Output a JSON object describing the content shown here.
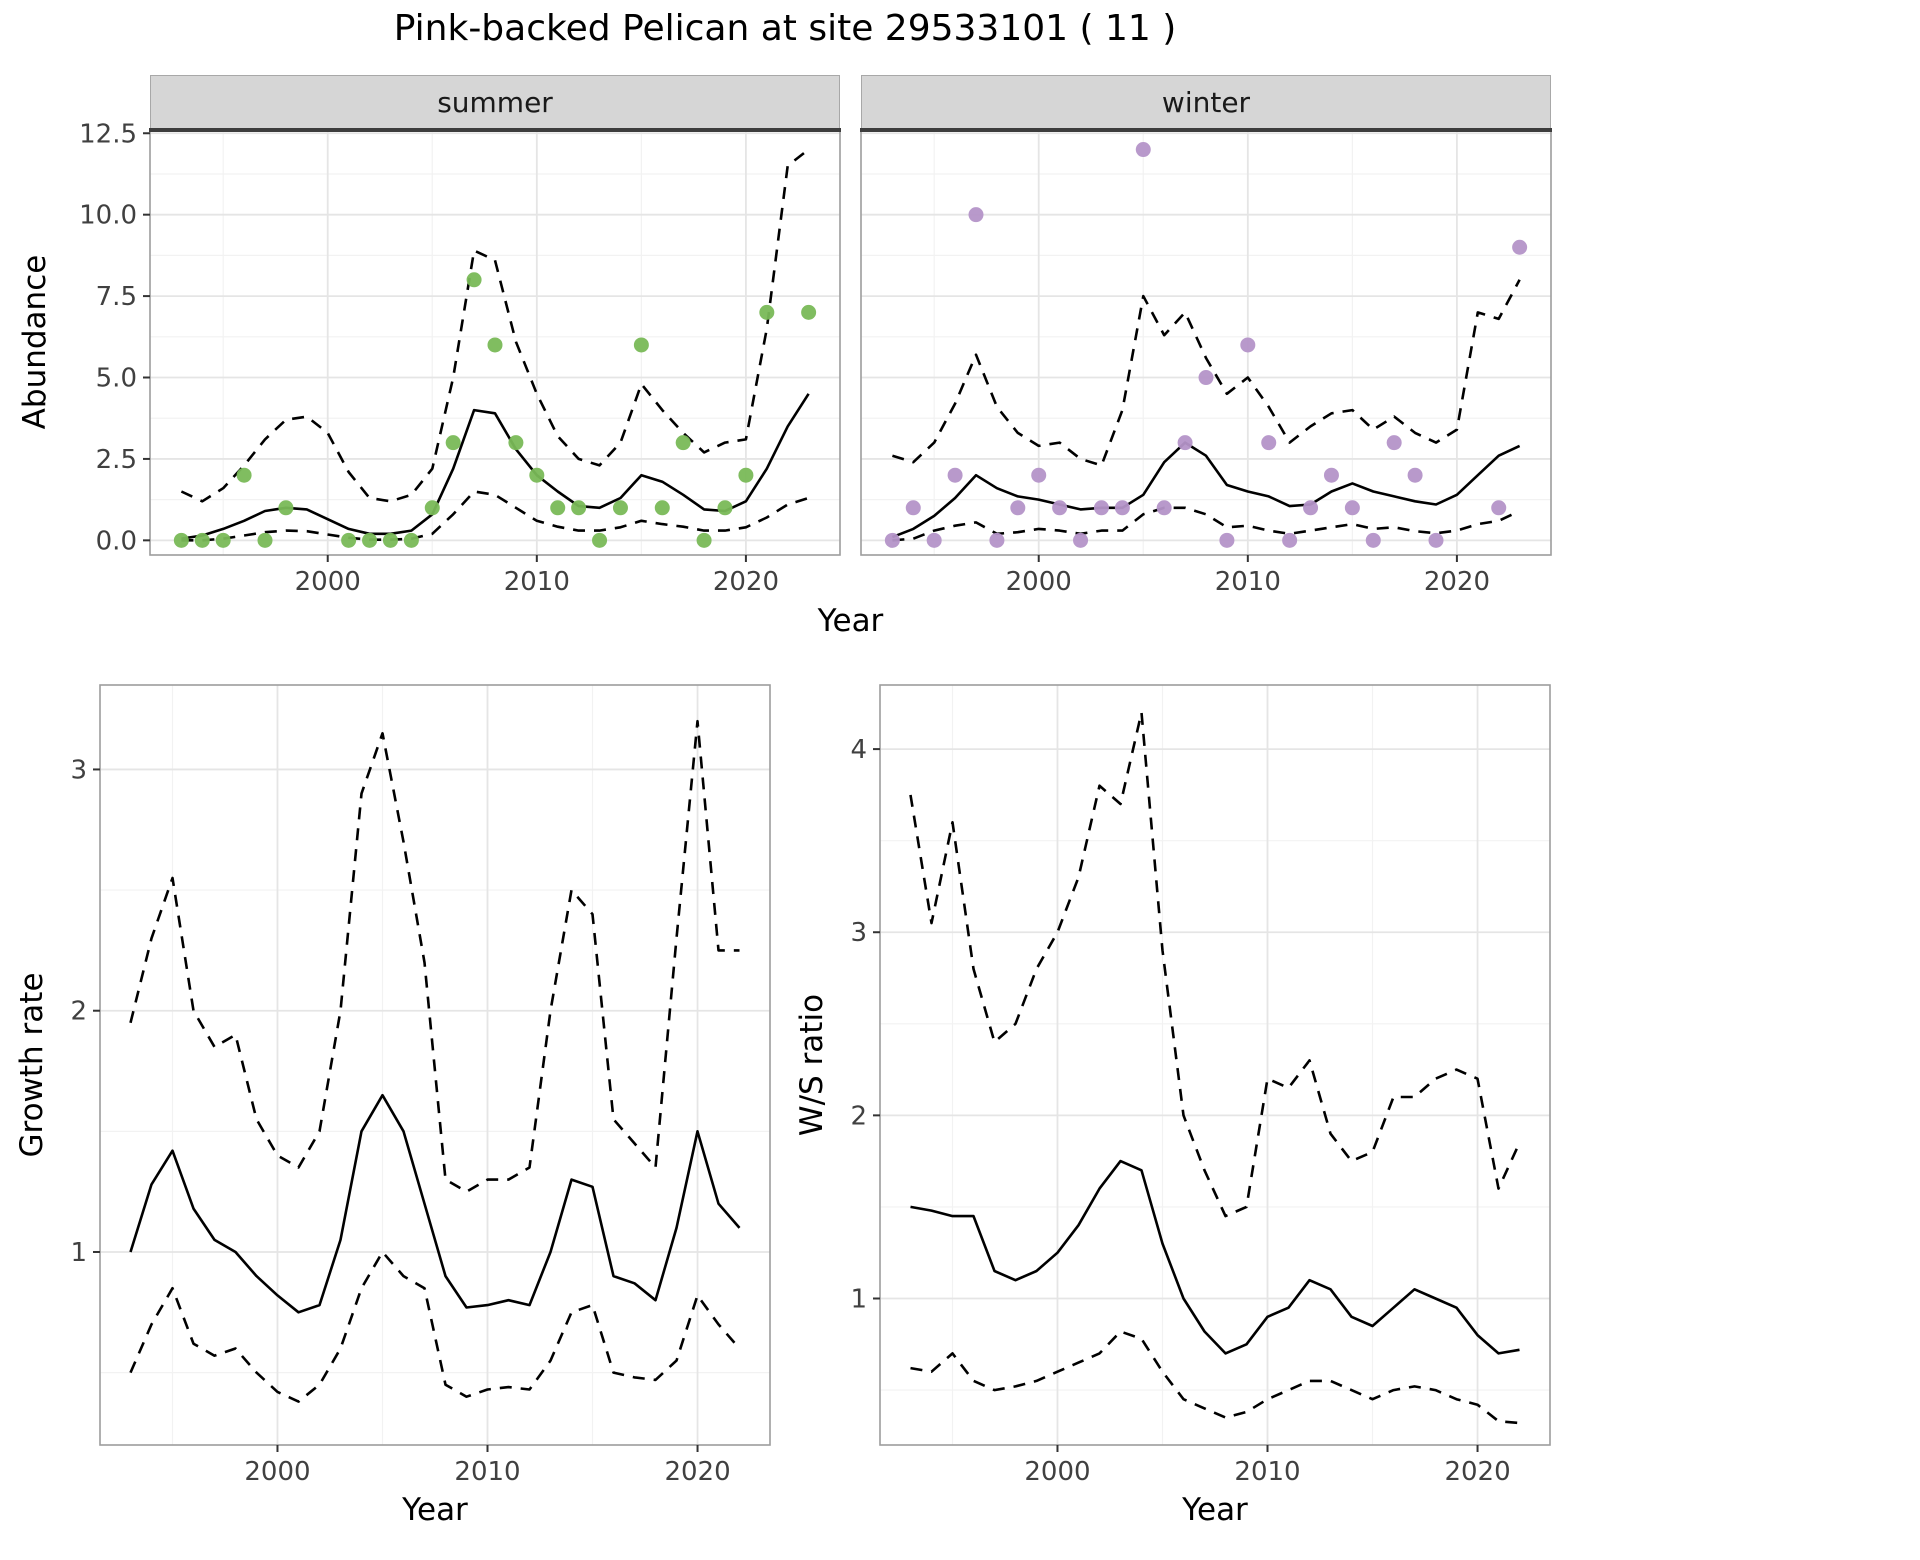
{
  "title": "Pink-backed Pelican at site 29533101 ( 11 )",
  "colors": {
    "summer_points": "#79b957",
    "winter_points": "#b493c8",
    "line": "#000000",
    "strip_background": "#d6d6d6",
    "panel_border": "#9d9d9d",
    "top_bar": "#3d3d3d",
    "grid_major": "#e5e5e5",
    "grid_minor": "#f2f2f2"
  },
  "chart_data": {
    "abundance": {
      "type": "line",
      "title": "Abundance by season with model fit and confidence band",
      "xlabel": "Year",
      "ylabel": "Abundance",
      "xlim": [
        1991.5,
        2024.5
      ],
      "ylim": [
        -0.45,
        12.6
      ],
      "xticks": [
        2000,
        2010,
        2020
      ],
      "xtick_labels": [
        "2000",
        "2010",
        "2020"
      ],
      "yticks": [
        0,
        2.5,
        5,
        7.5,
        10,
        12.5
      ],
      "ytick_labels": [
        "0.0",
        "2.5",
        "5.0",
        "7.5",
        "10.0",
        "12.5"
      ],
      "grid": true,
      "legend": "none",
      "series_style": {
        "fit": "solid",
        "upper": "dashed",
        "lower": "dashed"
      },
      "facets": [
        {
          "label": "summer",
          "point_color": "#79b957",
          "points": {
            "x": [
              1993,
              1994,
              1995,
              1996,
              1997,
              1998,
              2001,
              2002,
              2003,
              2004,
              2005,
              2006,
              2007,
              2008,
              2009,
              2010,
              2011,
              2012,
              2013,
              2014,
              2015,
              2016,
              2017,
              2018,
              2019,
              2020,
              2021,
              2023
            ],
            "y": [
              0,
              0,
              0,
              2,
              0,
              1,
              0,
              0,
              0,
              0,
              1,
              3,
              8,
              6,
              3,
              2,
              1,
              1,
              0,
              1,
              6,
              1,
              3,
              0,
              1,
              2,
              7,
              7
            ]
          },
          "years": [
            1993,
            1994,
            1995,
            1996,
            1997,
            1998,
            1999,
            2000,
            2001,
            2002,
            2003,
            2004,
            2005,
            2006,
            2007,
            2008,
            2009,
            2010,
            2011,
            2012,
            2013,
            2014,
            2015,
            2016,
            2017,
            2018,
            2019,
            2020,
            2021,
            2022,
            2023
          ],
          "fit": [
            0.05,
            0.15,
            0.35,
            0.6,
            0.9,
            1.0,
            0.95,
            0.65,
            0.35,
            0.2,
            0.2,
            0.3,
            0.8,
            2.2,
            4.0,
            3.9,
            2.8,
            2.0,
            1.5,
            1.05,
            1.0,
            1.3,
            2.0,
            1.8,
            1.4,
            0.95,
            0.9,
            1.2,
            2.2,
            3.5,
            4.5
          ],
          "upper": [
            1.5,
            1.2,
            1.6,
            2.3,
            3.1,
            3.7,
            3.8,
            3.3,
            2.1,
            1.3,
            1.2,
            1.4,
            2.2,
            5.0,
            8.9,
            8.6,
            6.1,
            4.5,
            3.2,
            2.5,
            2.3,
            3.0,
            4.8,
            4.0,
            3.3,
            2.7,
            3.0,
            3.1,
            6.5,
            11.5,
            12.0
          ],
          "lower": [
            0.0,
            0.0,
            0.05,
            0.15,
            0.25,
            0.3,
            0.28,
            0.18,
            0.08,
            0.02,
            0.02,
            0.05,
            0.2,
            0.8,
            1.5,
            1.4,
            1.0,
            0.6,
            0.42,
            0.3,
            0.3,
            0.4,
            0.6,
            0.5,
            0.42,
            0.3,
            0.3,
            0.4,
            0.7,
            1.1,
            1.3
          ]
        },
        {
          "label": "winter",
          "point_color": "#b493c8",
          "points": {
            "x": [
              1993,
              1994,
              1995,
              1996,
              1997,
              1998,
              1999,
              2000,
              2001,
              2002,
              2003,
              2004,
              2005,
              2006,
              2007,
              2008,
              2009,
              2010,
              2011,
              2012,
              2013,
              2014,
              2015,
              2016,
              2017,
              2018,
              2019,
              2022,
              2023
            ],
            "y": [
              0,
              1,
              0,
              2,
              10,
              0,
              1,
              2,
              1,
              0,
              1,
              1,
              12,
              1,
              3,
              5,
              0,
              6,
              3,
              0,
              1,
              2,
              1,
              0,
              3,
              2,
              0,
              1,
              9
            ]
          },
          "years": [
            1993,
            1994,
            1995,
            1996,
            1997,
            1998,
            1999,
            2000,
            2001,
            2002,
            2003,
            2004,
            2005,
            2006,
            2007,
            2008,
            2009,
            2010,
            2011,
            2012,
            2013,
            2014,
            2015,
            2016,
            2017,
            2018,
            2019,
            2020,
            2021,
            2022,
            2023
          ],
          "fit": [
            0.1,
            0.35,
            0.75,
            1.3,
            2.0,
            1.6,
            1.35,
            1.25,
            1.1,
            0.95,
            1.0,
            1.0,
            1.4,
            2.4,
            3.0,
            2.6,
            1.7,
            1.5,
            1.35,
            1.05,
            1.1,
            1.5,
            1.75,
            1.5,
            1.35,
            1.2,
            1.1,
            1.4,
            2.0,
            2.6,
            2.9
          ],
          "upper": [
            2.6,
            2.4,
            3.0,
            4.2,
            5.7,
            4.1,
            3.3,
            2.9,
            3.0,
            2.5,
            2.3,
            4.0,
            7.5,
            6.3,
            7.0,
            5.6,
            4.5,
            5.0,
            4.1,
            3.0,
            3.5,
            3.9,
            4.0,
            3.4,
            3.8,
            3.3,
            3.0,
            3.4,
            7.0,
            6.8,
            8.0
          ],
          "lower": [
            0.0,
            0.05,
            0.3,
            0.45,
            0.55,
            0.2,
            0.25,
            0.35,
            0.3,
            0.2,
            0.3,
            0.3,
            0.8,
            1.0,
            1.0,
            0.8,
            0.4,
            0.45,
            0.3,
            0.2,
            0.3,
            0.4,
            0.5,
            0.35,
            0.4,
            0.28,
            0.22,
            0.3,
            0.5,
            0.6,
            0.9
          ]
        }
      ]
    },
    "growth_rate": {
      "type": "line",
      "title": "Growth rate over time with confidence band",
      "xlabel": "Year",
      "ylabel": "Growth rate",
      "xlim": [
        1991.55,
        2023.45
      ],
      "ylim": [
        0.2,
        3.35
      ],
      "xticks": [
        2000,
        2010,
        2020
      ],
      "xtick_labels": [
        "2000",
        "2010",
        "2020"
      ],
      "yticks": [
        1,
        2,
        3
      ],
      "ytick_labels": [
        "1",
        "2",
        "3"
      ],
      "grid": true,
      "legend": "none",
      "series_style": {
        "fit": "solid",
        "upper": "dashed",
        "lower": "dashed"
      },
      "years": [
        1993,
        1994,
        1995,
        1996,
        1997,
        1998,
        1999,
        2000,
        2001,
        2002,
        2003,
        2004,
        2005,
        2006,
        2007,
        2008,
        2009,
        2010,
        2011,
        2012,
        2013,
        2014,
        2015,
        2016,
        2017,
        2018,
        2019,
        2020,
        2021,
        2022
      ],
      "fit": [
        1.0,
        1.28,
        1.42,
        1.18,
        1.05,
        1.0,
        0.9,
        0.82,
        0.75,
        0.78,
        1.05,
        1.5,
        1.65,
        1.5,
        1.2,
        0.9,
        0.77,
        0.78,
        0.8,
        0.78,
        1.0,
        1.3,
        1.27,
        0.9,
        0.87,
        0.8,
        1.1,
        1.5,
        1.2,
        1.1
      ],
      "upper": [
        1.95,
        2.3,
        2.55,
        2.0,
        1.85,
        1.9,
        1.55,
        1.4,
        1.35,
        1.5,
        2.0,
        2.9,
        3.15,
        2.7,
        2.2,
        1.3,
        1.25,
        1.3,
        1.3,
        1.35,
        2.0,
        2.5,
        2.4,
        1.55,
        1.45,
        1.35,
        2.3,
        3.2,
        2.25,
        2.25
      ],
      "lower": [
        0.5,
        0.7,
        0.85,
        0.62,
        0.57,
        0.6,
        0.5,
        0.42,
        0.38,
        0.45,
        0.6,
        0.85,
        1.0,
        0.9,
        0.85,
        0.45,
        0.4,
        0.43,
        0.44,
        0.43,
        0.55,
        0.75,
        0.78,
        0.5,
        0.48,
        0.47,
        0.55,
        0.82,
        0.7,
        0.6
      ]
    },
    "ws_ratio": {
      "type": "line",
      "title": "Winter/Summer ratio over time with confidence band",
      "xlabel": "Year",
      "ylabel": "W/S ratio",
      "xlim": [
        1991.55,
        2023.45
      ],
      "ylim": [
        0.2,
        4.35
      ],
      "xticks": [
        2000,
        2010,
        2020
      ],
      "xtick_labels": [
        "2000",
        "2010",
        "2020"
      ],
      "yticks": [
        1,
        2,
        3,
        4
      ],
      "ytick_labels": [
        "1",
        "2",
        "3",
        "4"
      ],
      "grid": true,
      "legend": "none",
      "series_style": {
        "fit": "solid",
        "upper": "dashed",
        "lower": "dashed"
      },
      "years": [
        1993,
        1994,
        1995,
        1996,
        1997,
        1998,
        1999,
        2000,
        2001,
        2002,
        2003,
        2004,
        2005,
        2006,
        2007,
        2008,
        2009,
        2010,
        2011,
        2012,
        2013,
        2014,
        2015,
        2016,
        2017,
        2018,
        2019,
        2020,
        2021,
        2022
      ],
      "fit": [
        1.5,
        1.48,
        1.45,
        1.45,
        1.15,
        1.1,
        1.15,
        1.25,
        1.4,
        1.6,
        1.75,
        1.7,
        1.3,
        1.0,
        0.82,
        0.7,
        0.75,
        0.9,
        0.95,
        1.1,
        1.05,
        0.9,
        0.85,
        0.95,
        1.05,
        1.0,
        0.95,
        0.8,
        0.7,
        0.72
      ],
      "upper": [
        3.75,
        3.05,
        3.6,
        2.8,
        2.4,
        2.5,
        2.8,
        3.0,
        3.3,
        3.8,
        3.7,
        4.2,
        2.9,
        2.0,
        1.7,
        1.45,
        1.5,
        2.2,
        2.15,
        2.3,
        1.9,
        1.75,
        1.8,
        2.1,
        2.1,
        2.2,
        2.25,
        2.2,
        1.6,
        1.85
      ],
      "lower": [
        0.62,
        0.6,
        0.7,
        0.55,
        0.5,
        0.52,
        0.55,
        0.6,
        0.65,
        0.7,
        0.82,
        0.78,
        0.6,
        0.45,
        0.4,
        0.35,
        0.38,
        0.45,
        0.5,
        0.55,
        0.55,
        0.5,
        0.45,
        0.5,
        0.52,
        0.5,
        0.45,
        0.42,
        0.33,
        0.32
      ]
    }
  }
}
